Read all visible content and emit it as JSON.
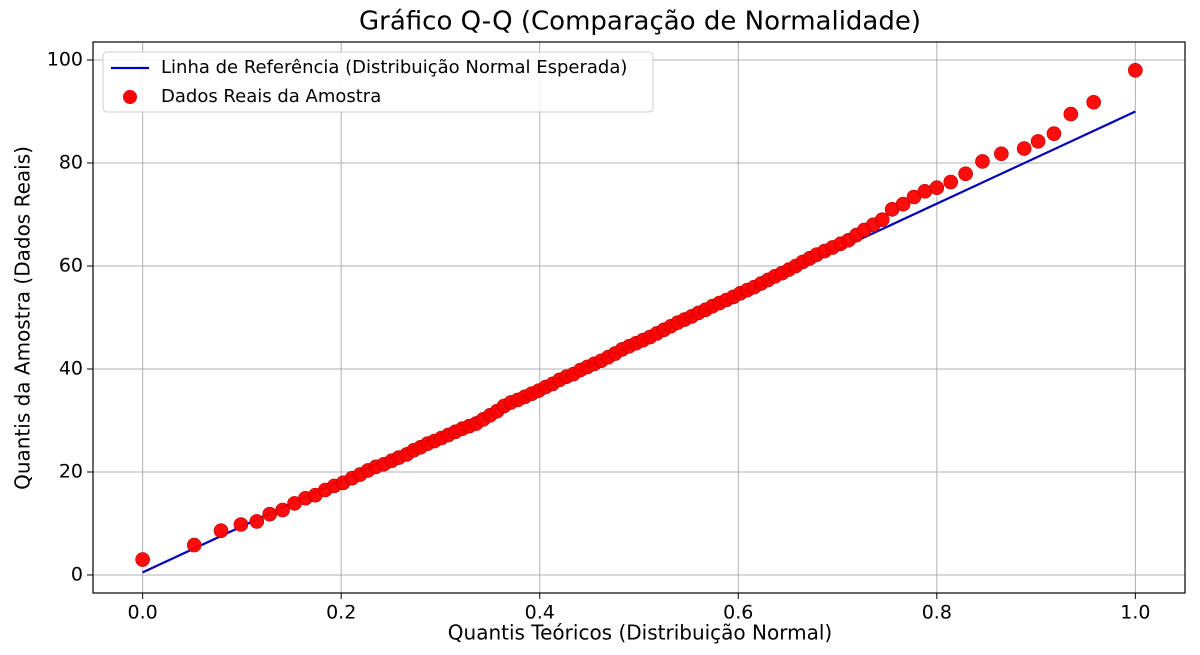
{
  "chart_data": {
    "type": "scatter",
    "title": "Gráfico Q-Q (Comparação de Normalidade)",
    "xlabel": "Quantis Teóricos (Distribuição Normal)",
    "ylabel": "Quantis da Amostra (Dados Reais)",
    "xlim": [
      -0.05,
      1.05
    ],
    "ylim": [
      -3.5,
      103.5
    ],
    "xticks": [
      {
        "value": 0,
        "label": "0.0"
      },
      0.2,
      0.4,
      0.6,
      0.8,
      {
        "value": 1,
        "label": "1.0"
      }
    ],
    "yticks": [
      0,
      20,
      40,
      60,
      80,
      100
    ],
    "grid": true,
    "legend": "upper left",
    "series": [
      {
        "name": "Linha de Referência (Distribuição Normal Esperada)",
        "type": "line",
        "color": "#0000bb",
        "x": [
          0,
          1
        ],
        "values": [
          0.5,
          90
        ]
      },
      {
        "name": "Dados Reais da Amostra",
        "type": "scatter",
        "color": "#ff0000",
        "x": [
          0,
          0.052,
          0.079,
          0.099,
          0.115,
          0.128,
          0.141,
          0.153,
          0.164,
          0.174,
          0.184,
          0.193,
          0.202,
          0.211,
          0.219,
          0.227,
          0.235,
          0.243,
          0.251,
          0.258,
          0.266,
          0.273,
          0.28,
          0.287,
          0.294,
          0.301,
          0.308,
          0.315,
          0.322,
          0.329,
          0.336,
          0.343,
          0.35,
          0.357,
          0.364,
          0.371,
          0.378,
          0.385,
          0.392,
          0.399,
          0.406,
          0.413,
          0.42,
          0.427,
          0.434,
          0.441,
          0.448,
          0.455,
          0.462,
          0.469,
          0.476,
          0.483,
          0.49,
          0.497,
          0.504,
          0.511,
          0.518,
          0.525,
          0.532,
          0.539,
          0.546,
          0.553,
          0.56,
          0.567,
          0.574,
          0.581,
          0.588,
          0.595,
          0.602,
          0.609,
          0.616,
          0.623,
          0.63,
          0.637,
          0.644,
          0.651,
          0.658,
          0.665,
          0.672,
          0.679,
          0.687,
          0.695,
          0.703,
          0.711,
          0.719,
          0.727,
          0.736,
          0.745,
          0.755,
          0.766,
          0.777,
          0.788,
          0.8,
          0.814,
          0.829,
          0.846,
          0.865,
          0.888,
          0.902,
          0.918,
          0.935,
          0.958,
          1
        ],
        "values": [
          3,
          5.8,
          8.6,
          9.8,
          10.4,
          11.8,
          12.6,
          13.9,
          14.9,
          15.5,
          16.5,
          17.3,
          17.9,
          18.8,
          19.5,
          20.3,
          21,
          21.5,
          22.2,
          22.8,
          23.4,
          24.2,
          24.8,
          25.5,
          26,
          26.6,
          27.2,
          27.8,
          28.4,
          28.9,
          29.4,
          30.2,
          31,
          31.8,
          32.8,
          33.5,
          34,
          34.6,
          35.2,
          35.8,
          36.5,
          37.1,
          37.9,
          38.5,
          39,
          39.8,
          40.4,
          41,
          41.6,
          42.3,
          43,
          43.8,
          44.4,
          45,
          45.6,
          46.2,
          46.9,
          47.6,
          48.3,
          49,
          49.6,
          50.2,
          50.9,
          51.5,
          52.2,
          52.8,
          53.4,
          54,
          54.7,
          55.3,
          55.9,
          56.6,
          57.3,
          58,
          58.6,
          59.3,
          60,
          60.8,
          61.5,
          62.2,
          62.9,
          63.6,
          64.3,
          65,
          66,
          67,
          68,
          69,
          71,
          72,
          73.4,
          74.5,
          75.2,
          76.3,
          77.9,
          80.3,
          81.8,
          82.8,
          84.2,
          85.7,
          89.5,
          91.8,
          98
        ]
      }
    ]
  }
}
